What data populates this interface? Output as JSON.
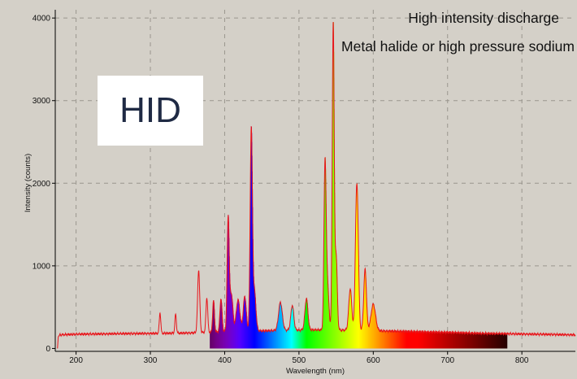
{
  "chart_data": {
    "type": "line",
    "title": "",
    "xlabel": "Wavelength (nm)",
    "ylabel": "Intensity (counts)",
    "xlim": [
      172,
      872
    ],
    "ylim": [
      -35,
      4100
    ],
    "x_ticks": [
      200,
      300,
      400,
      500,
      600,
      700,
      800
    ],
    "y_ticks": [
      0,
      1000,
      2000,
      3000,
      4000
    ],
    "grid": true,
    "legend": "none",
    "line_color": "#e8141a",
    "fill": "visible-spectrum gradient under curve, 380–780 nm",
    "annotations": [
      "High intensity discharge",
      "Metal halide or high pressure sodium",
      "HID"
    ],
    "baseline": [
      [
        175,
        0
      ],
      [
        176,
        140
      ],
      [
        178,
        165
      ],
      [
        200,
        172
      ],
      [
        250,
        178
      ],
      [
        300,
        182
      ],
      [
        340,
        185
      ],
      [
        380,
        195
      ],
      [
        400,
        205
      ],
      [
        440,
        210
      ],
      [
        480,
        220
      ],
      [
        520,
        225
      ],
      [
        560,
        222
      ],
      [
        600,
        215
      ],
      [
        650,
        205
      ],
      [
        700,
        195
      ],
      [
        750,
        182
      ],
      [
        800,
        175
      ],
      [
        850,
        168
      ],
      [
        872,
        165
      ]
    ],
    "peaks": [
      {
        "x": 313,
        "y": 250,
        "w": 1.0
      },
      {
        "x": 334,
        "y": 230,
        "w": 1.0
      },
      {
        "x": 365,
        "y": 760,
        "w": 1.4
      },
      {
        "x": 376,
        "y": 420,
        "w": 1.2
      },
      {
        "x": 385,
        "y": 380,
        "w": 1.2
      },
      {
        "x": 395,
        "y": 400,
        "w": 1.4
      },
      {
        "x": 404.7,
        "y": 1360,
        "w": 1.4
      },
      {
        "x": 409,
        "y": 450,
        "w": 2.0
      },
      {
        "x": 418,
        "y": 380,
        "w": 2.5
      },
      {
        "x": 427,
        "y": 420,
        "w": 2.0
      },
      {
        "x": 435.8,
        "y": 2430,
        "w": 1.5
      },
      {
        "x": 440,
        "y": 480,
        "w": 2.0
      },
      {
        "x": 475,
        "y": 340,
        "w": 2.5
      },
      {
        "x": 491,
        "y": 300,
        "w": 2.0
      },
      {
        "x": 510,
        "y": 380,
        "w": 2.0
      },
      {
        "x": 535,
        "y": 1890,
        "w": 1.4
      },
      {
        "x": 538,
        "y": 600,
        "w": 2.0
      },
      {
        "x": 546.1,
        "y": 3720,
        "w": 1.3
      },
      {
        "x": 550,
        "y": 900,
        "w": 1.5
      },
      {
        "x": 569,
        "y": 500,
        "w": 2.0
      },
      {
        "x": 577,
        "y": 1130,
        "w": 1.6
      },
      {
        "x": 579,
        "y": 1020,
        "w": 1.6
      },
      {
        "x": 589,
        "y": 740,
        "w": 1.8
      },
      {
        "x": 600,
        "y": 320,
        "w": 3.0
      }
    ]
  }
}
